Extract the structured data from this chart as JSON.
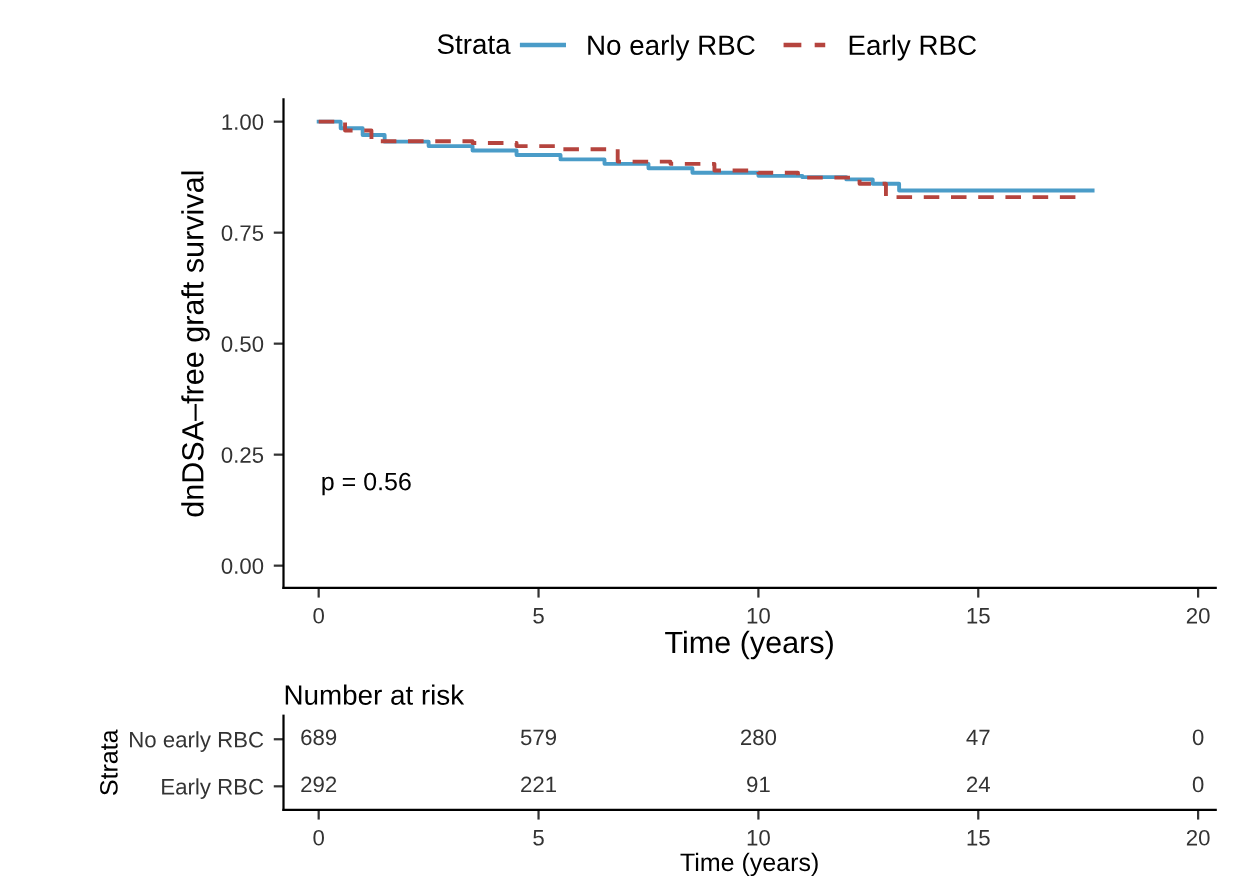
{
  "chart_data": [
    {
      "type": "step",
      "xlabel": "Time (years)",
      "ylabel": "dnDSA–free graft survival",
      "legend_title": "Strata",
      "legend": "top",
      "xlim": [
        -0.8,
        20.4
      ],
      "xticks": [
        0,
        5,
        10,
        15,
        20
      ],
      "ylim": [
        -0.05,
        1.05
      ],
      "yticks": [
        {
          "value": 0,
          "label": "0.00"
        },
        {
          "value": 0.25,
          "label": "0.25"
        },
        {
          "value": 0.5,
          "label": "0.50"
        },
        {
          "value": 0.75,
          "label": "0.75"
        },
        {
          "value": 1,
          "label": "1.00"
        }
      ],
      "grid": false,
      "annotations": [
        "p = 0.56"
      ],
      "series": [
        {
          "name": "No early RBC",
          "color": "#4a9cc8",
          "line_style": "solid",
          "x": [
            0,
            0.5,
            1.0,
            1.5,
            2.5,
            3.5,
            4.5,
            5.5,
            6.5,
            7.5,
            8.5,
            10,
            11,
            12,
            12.6,
            13.2,
            17.6
          ],
          "values": [
            1.0,
            0.985,
            0.97,
            0.955,
            0.945,
            0.935,
            0.925,
            0.915,
            0.905,
            0.895,
            0.885,
            0.878,
            0.875,
            0.87,
            0.86,
            0.845,
            0.845
          ]
        },
        {
          "name": "Early RBC",
          "color": "#b5443e",
          "line_style": "dashed",
          "x": [
            0,
            0.6,
            1.2,
            3.5,
            4.5,
            5.5,
            6.8,
            8.0,
            9.0,
            10.0,
            10.9,
            12.3,
            12.9,
            17.3
          ],
          "values": [
            1.0,
            0.98,
            0.956,
            0.952,
            0.945,
            0.938,
            0.91,
            0.905,
            0.89,
            0.885,
            0.874,
            0.86,
            0.83,
            0.83
          ]
        }
      ]
    },
    {
      "type": "heatmap",
      "title": "Number at risk",
      "xlabel": "Time (years)",
      "ylabel": "Strata",
      "categories": [
        "0",
        "5",
        "10",
        "15",
        "20"
      ],
      "y_categories": [
        "No early RBC",
        "Early RBC"
      ],
      "cells": [
        [
          689,
          579,
          280,
          47,
          0
        ],
        [
          292,
          221,
          91,
          24,
          0
        ]
      ],
      "data_labels": true
    }
  ]
}
